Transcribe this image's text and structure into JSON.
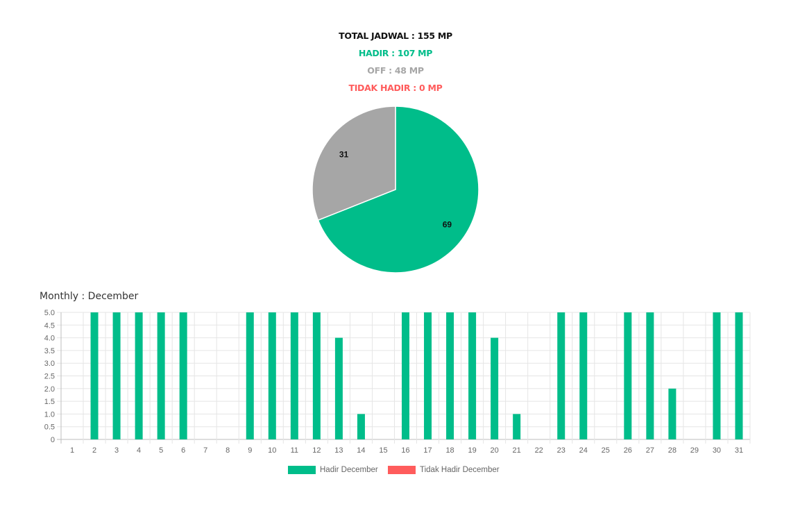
{
  "summary": {
    "total": "TOTAL JADWAL : 155 MP",
    "hadir": "HADIR : 107 MP",
    "off": "OFF : 48 MP",
    "tidak_hadir": "TIDAK HADIR : 0 MP"
  },
  "colors": {
    "hadir": "#00bd8a",
    "off": "#a6a6a6",
    "tidak_hadir": "#ff5c5c",
    "grid": "#e5e5e5",
    "axis_text": "#666666"
  },
  "chart_data": [
    {
      "type": "pie",
      "slices": [
        {
          "label": "Hadir",
          "value": 69,
          "color": "#00bd8a"
        },
        {
          "label": "Off",
          "value": 31,
          "color": "#a6a6a6"
        }
      ],
      "data_labels": [
        "69",
        "31"
      ]
    },
    {
      "type": "bar",
      "title": "Monthly : December",
      "categories": [
        "1",
        "2",
        "3",
        "4",
        "5",
        "6",
        "7",
        "8",
        "9",
        "10",
        "11",
        "12",
        "13",
        "14",
        "15",
        "16",
        "17",
        "18",
        "19",
        "20",
        "21",
        "22",
        "23",
        "24",
        "25",
        "26",
        "27",
        "28",
        "29",
        "30",
        "31"
      ],
      "series": [
        {
          "name": "Hadir December",
          "color": "#00bd8a",
          "values": [
            0,
            5,
            5,
            5,
            5,
            5,
            0,
            0,
            5,
            5,
            5,
            5,
            4,
            1,
            0,
            5,
            5,
            5,
            5,
            4,
            1,
            0,
            5,
            5,
            0,
            5,
            5,
            2,
            0,
            5,
            5
          ]
        },
        {
          "name": "Tidak Hadir December",
          "color": "#ff5c5c",
          "values": [
            0,
            0,
            0,
            0,
            0,
            0,
            0,
            0,
            0,
            0,
            0,
            0,
            0,
            0,
            0,
            0,
            0,
            0,
            0,
            0,
            0,
            0,
            0,
            0,
            0,
            0,
            0,
            0,
            0,
            0,
            0
          ]
        }
      ],
      "ylim": [
        0,
        5
      ],
      "yticks": [
        "0",
        "0.5",
        "1.0",
        "1.5",
        "2.0",
        "2.5",
        "3.0",
        "3.5",
        "4.0",
        "4.5",
        "5.0"
      ],
      "grid": true,
      "legend_position": "bottom"
    }
  ]
}
